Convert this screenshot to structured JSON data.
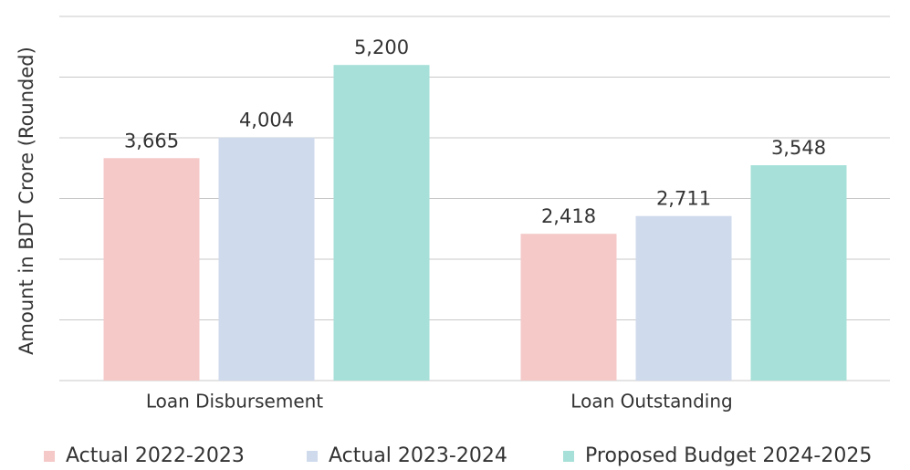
{
  "chart_data": {
    "type": "bar",
    "y_label": "Amount in BDT Crore (Rounded)",
    "categories": [
      "Loan Disbursement",
      "Loan Outstanding"
    ],
    "series": [
      {
        "name": "Actual 2022-2023",
        "color": "#f4c9c8",
        "values": [
          3665,
          2418
        ],
        "value_labels": [
          "3,665",
          "2,418"
        ]
      },
      {
        "name": "Actual 2023-2024",
        "color": "#cfdaec",
        "values": [
          4004,
          2711
        ],
        "value_labels": [
          "4,004",
          "2,711"
        ]
      },
      {
        "name": "Proposed Budget 2024-2025",
        "color": "#a6e0d8",
        "values": [
          5200,
          3548
        ],
        "value_labels": [
          "5,200",
          "3,548"
        ]
      }
    ],
    "ylim": [
      0,
      6000
    ],
    "yticks": [
      0,
      1000,
      2000,
      3000,
      4000,
      5000,
      6000
    ],
    "grid": true,
    "legend": "bottom"
  }
}
